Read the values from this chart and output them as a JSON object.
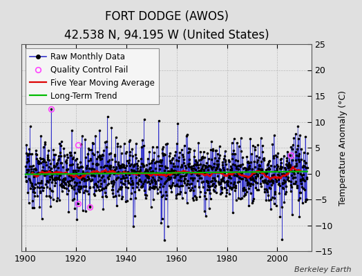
{
  "title": "FORT DODGE (AWOS)",
  "subtitle": "42.538 N, 94.195 W (United States)",
  "ylabel": "Temperature Anomaly (°C)",
  "attribution": "Berkeley Earth",
  "xlim": [
    1898.5,
    2013.5
  ],
  "ylim": [
    -15,
    25
  ],
  "yticks": [
    -15,
    -10,
    -5,
    0,
    5,
    10,
    15,
    20,
    25
  ],
  "xticks": [
    1900,
    1920,
    1940,
    1960,
    1980,
    2000
  ],
  "background_color": "#e0e0e0",
  "plot_bg_color": "#e8e8e8",
  "raw_line_color": "#3333cc",
  "raw_marker_color": "#000000",
  "moving_avg_color": "#dd0000",
  "trend_color": "#00bb00",
  "qc_fail_color": "#ff44ff",
  "start_year": 1900,
  "end_year": 2011,
  "seed": 12345,
  "qc_fail_points": [
    {
      "year": 1910.25,
      "value": 12.5
    },
    {
      "year": 1920.75,
      "value": 5.5
    },
    {
      "year": 1920.75,
      "value": -5.8
    },
    {
      "year": 1925.5,
      "value": -6.5
    },
    {
      "year": 2005.5,
      "value": 3.5
    }
  ],
  "trend_value": 0.0,
  "title_fontsize": 12,
  "subtitle_fontsize": 10,
  "tick_fontsize": 9,
  "ylabel_fontsize": 9,
  "legend_fontsize": 8.5,
  "attribution_fontsize": 8
}
